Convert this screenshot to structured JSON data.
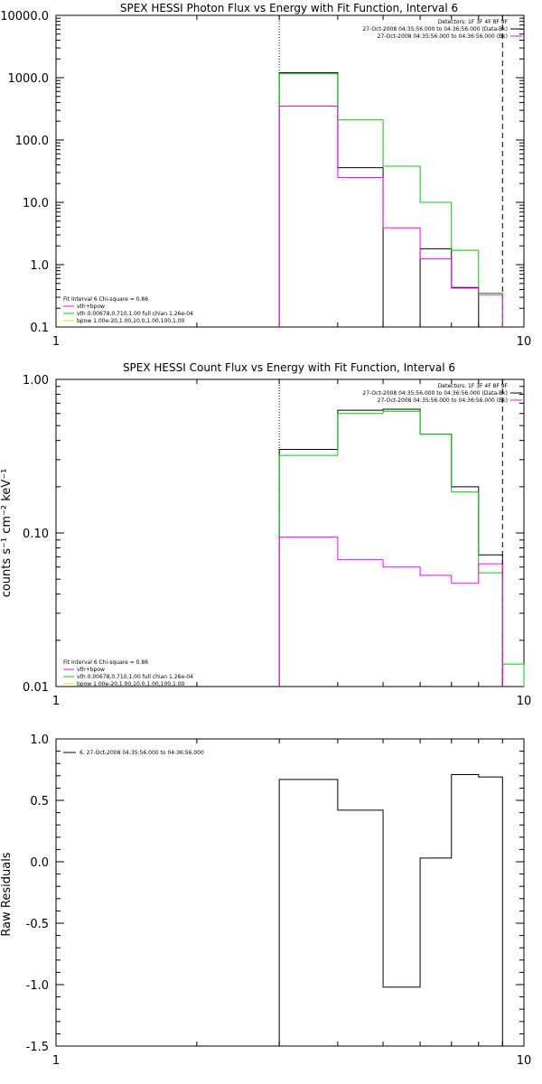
{
  "colors": {
    "data": "#000000",
    "total": "#00cc00",
    "vth": "#00cc00",
    "bpow": "#ff00ff",
    "legend_vth_line": "#ff00ff",
    "legend_bpow_line": "#ffcc00",
    "bg": "#ffffff"
  },
  "chart_data": [
    {
      "type": "line",
      "title": "SPEX HESSI Photon Flux vs Energy with Fit Function, Interval 6",
      "xlabel": "",
      "ylabel": "",
      "xlim": [
        1,
        10
      ],
      "ylim": [
        0.1,
        10000
      ],
      "xscale": "log",
      "yscale": "log",
      "xtick_labels": [
        "1",
        "10"
      ],
      "ytick_labels": [
        "0.1",
        "1.0",
        "10.0",
        "100.0",
        "1000.0",
        "10000.0"
      ],
      "x_edges": [
        3,
        4,
        5,
        6,
        7,
        8,
        9
      ],
      "vlines": {
        "dotted": 3,
        "dashed": 9
      },
      "series": [
        {
          "role": "data",
          "values": [
            1200,
            36,
            null,
            1.8,
            0.43,
            null
          ]
        },
        {
          "role": "total",
          "values": [
            1150,
            210,
            38,
            10,
            1.7,
            0.35
          ]
        },
        {
          "role": "bpow",
          "values": [
            350,
            25,
            3.9,
            1.25,
            0.42,
            0.33
          ]
        }
      ],
      "legend_top": {
        "line1": "Detectors: 1F 3F 4F 8F 9F",
        "line2": "27-Oct-2008 04:35:56.000 to 04:36:56.000 (Data-Bk)",
        "line3": "27-Oct-2008 04:35:56.000 to 04:36:56.000 (Bk)"
      },
      "legend_fit": {
        "line1": "Fit Interval  6    Chi-square = 0.86",
        "line2": "vth+bpow",
        "line3": "vth 0.00678,0.710,1.00  full chian 1.26e-04",
        "line4": "bpow 1.00e-20,1.00,10.0,1.00,100,1.00"
      }
    },
    {
      "type": "line",
      "title": "SPEX HESSI Count Flux vs Energy with Fit Function, Interval 6",
      "xlabel": "",
      "ylabel": "counts s⁻¹ cm⁻² keV⁻¹",
      "xlim": [
        1,
        10
      ],
      "ylim": [
        0.01,
        1.0
      ],
      "xscale": "log",
      "yscale": "log",
      "xtick_labels": [
        "1",
        "10"
      ],
      "ytick_labels": [
        "0.01",
        "0.10",
        "1.00"
      ],
      "x_edges": [
        3,
        4,
        5,
        6,
        7,
        8,
        9,
        10
      ],
      "vlines": {
        "dotted": 3,
        "dashed": 9
      },
      "series": [
        {
          "role": "data",
          "values": [
            0.35,
            0.63,
            0.64,
            0.44,
            0.2,
            0.072,
            null
          ]
        },
        {
          "role": "total",
          "values": [
            0.32,
            0.6,
            0.62,
            0.44,
            0.185,
            0.055,
            0.014
          ]
        },
        {
          "role": "bpow",
          "values": [
            0.094,
            0.067,
            0.06,
            0.053,
            0.047,
            0.063,
            null
          ]
        }
      ],
      "legend_top": {
        "line1": "Detectors: 1F 3F 4F 8F 9F",
        "line2": "27-Oct-2008 04:35:56.000 to 04:36:56.000 (Data-Bk)",
        "line3": "27-Oct-2008 04:35:56.000 to 04:36:56.000 (Bk)"
      },
      "legend_fit": {
        "line1": "Fit Interval  6    Chi-square = 0.86",
        "line2": "vth+bpow",
        "line3": "vth 0.00678,0.710,1.00  full chian 1.26e-04",
        "line4": "bpow 1.00e-20,1.00,10.0,1.00,100,1.00"
      }
    },
    {
      "type": "line",
      "title": "",
      "xlabel": "",
      "ylabel": "Raw Residuals",
      "xlim": [
        1,
        10
      ],
      "ylim": [
        -1.5,
        1.0
      ],
      "xscale": "log",
      "yscale": "linear",
      "xtick_labels": [
        "1",
        "10"
      ],
      "ytick_labels": [
        "-1.5",
        "-1.0",
        "-0.5",
        "0.0",
        "0.5",
        "1.0"
      ],
      "x_edges": [
        3,
        4,
        5,
        6,
        7,
        8,
        9
      ],
      "series": [
        {
          "role": "data",
          "values": [
            0.67,
            0.42,
            -1.02,
            0.03,
            0.71,
            0.69
          ]
        }
      ],
      "legend": "6. 27-Oct-2008 04:35:56.000 to 04:36:56.000"
    }
  ]
}
